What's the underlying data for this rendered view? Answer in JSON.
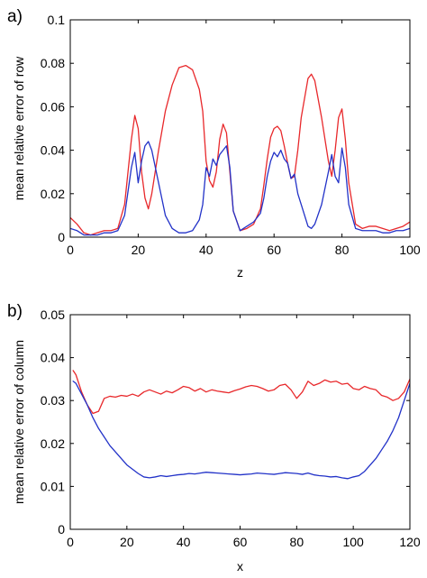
{
  "chart_data": [
    {
      "panel_label": "a)",
      "type": "line",
      "title": "",
      "xlabel": "z",
      "ylabel": "mean relative error of row",
      "xlim": [
        0,
        100
      ],
      "ylim": [
        0,
        0.1
      ],
      "xticks": [
        0,
        20,
        40,
        60,
        80,
        100
      ],
      "yticks": [
        0,
        0.02,
        0.04,
        0.06,
        0.08,
        0.1
      ],
      "xtick_labels": [
        "0",
        "20",
        "40",
        "60",
        "80",
        "100"
      ],
      "ytick_labels": [
        "0",
        "0.02",
        "0.04",
        "0.06",
        "0.08",
        "0.1"
      ],
      "grid": false,
      "series": [
        {
          "color": "#e8282b",
          "x": [
            0,
            2,
            4,
            6,
            8,
            10,
            12,
            14,
            16,
            18,
            19,
            20,
            21,
            22,
            23,
            24,
            26,
            28,
            30,
            32,
            34,
            36,
            38,
            39,
            40,
            41,
            42,
            43,
            44,
            45,
            46,
            47,
            48,
            50,
            52,
            54,
            56,
            57,
            58,
            59,
            60,
            61,
            62,
            63,
            64,
            65,
            66,
            67,
            68,
            70,
            71,
            72,
            74,
            76,
            77,
            78,
            79,
            80,
            81,
            82,
            84,
            86,
            88,
            90,
            92,
            94,
            96,
            98,
            100
          ],
          "y": [
            0.009,
            0.006,
            0.002,
            0.001,
            0.002,
            0.003,
            0.003,
            0.004,
            0.015,
            0.045,
            0.056,
            0.05,
            0.03,
            0.018,
            0.013,
            0.02,
            0.04,
            0.058,
            0.07,
            0.078,
            0.079,
            0.077,
            0.068,
            0.058,
            0.035,
            0.026,
            0.023,
            0.03,
            0.045,
            0.052,
            0.048,
            0.03,
            0.012,
            0.003,
            0.004,
            0.006,
            0.013,
            0.024,
            0.036,
            0.046,
            0.05,
            0.051,
            0.049,
            0.042,
            0.034,
            0.027,
            0.028,
            0.04,
            0.055,
            0.073,
            0.075,
            0.072,
            0.055,
            0.035,
            0.028,
            0.04,
            0.055,
            0.059,
            0.045,
            0.025,
            0.006,
            0.004,
            0.005,
            0.005,
            0.004,
            0.003,
            0.004,
            0.005,
            0.007
          ]
        },
        {
          "color": "#2232c8",
          "x": [
            0,
            2,
            4,
            6,
            8,
            10,
            12,
            14,
            16,
            18,
            19,
            20,
            21,
            22,
            23,
            24,
            26,
            28,
            30,
            32,
            34,
            36,
            38,
            39,
            40,
            41,
            42,
            43,
            44,
            45,
            46,
            47,
            48,
            50,
            52,
            54,
            56,
            57,
            58,
            59,
            60,
            61,
            62,
            63,
            64,
            65,
            66,
            67,
            68,
            70,
            71,
            72,
            74,
            76,
            77,
            78,
            79,
            80,
            81,
            82,
            84,
            86,
            88,
            90,
            92,
            94,
            96,
            98,
            100
          ],
          "y": [
            0.004,
            0.003,
            0.001,
            0.001,
            0.001,
            0.002,
            0.002,
            0.003,
            0.01,
            0.032,
            0.039,
            0.025,
            0.035,
            0.042,
            0.044,
            0.04,
            0.025,
            0.01,
            0.004,
            0.002,
            0.002,
            0.003,
            0.008,
            0.015,
            0.032,
            0.028,
            0.036,
            0.033,
            0.038,
            0.04,
            0.042,
            0.032,
            0.012,
            0.003,
            0.005,
            0.007,
            0.011,
            0.018,
            0.028,
            0.035,
            0.039,
            0.037,
            0.04,
            0.036,
            0.034,
            0.027,
            0.029,
            0.02,
            0.015,
            0.005,
            0.004,
            0.006,
            0.015,
            0.03,
            0.038,
            0.028,
            0.025,
            0.041,
            0.032,
            0.015,
            0.004,
            0.003,
            0.003,
            0.003,
            0.002,
            0.002,
            0.003,
            0.003,
            0.004
          ]
        }
      ]
    },
    {
      "panel_label": "b)",
      "type": "line",
      "title": "",
      "xlabel": "x",
      "ylabel": "mean relative error of column",
      "xlim": [
        0,
        120
      ],
      "ylim": [
        0,
        0.05
      ],
      "xticks": [
        0,
        20,
        40,
        60,
        80,
        100,
        120
      ],
      "yticks": [
        0,
        0.01,
        0.02,
        0.03,
        0.04,
        0.05
      ],
      "xtick_labels": [
        "0",
        "20",
        "40",
        "60",
        "80",
        "100",
        "120"
      ],
      "ytick_labels": [
        "0",
        "0.01",
        "0.02",
        "0.03",
        "0.04",
        "0.05"
      ],
      "grid": false,
      "series": [
        {
          "color": "#e8282b",
          "x": [
            1,
            2,
            4,
            6,
            8,
            10,
            12,
            14,
            16,
            18,
            20,
            22,
            24,
            26,
            28,
            30,
            32,
            34,
            36,
            38,
            40,
            42,
            44,
            46,
            48,
            50,
            52,
            54,
            56,
            58,
            60,
            62,
            64,
            66,
            68,
            70,
            72,
            74,
            76,
            78,
            80,
            82,
            84,
            86,
            88,
            90,
            92,
            94,
            96,
            98,
            100,
            102,
            104,
            106,
            108,
            110,
            112,
            114,
            116,
            118,
            120
          ],
          "y": [
            0.037,
            0.036,
            0.032,
            0.029,
            0.027,
            0.0275,
            0.0305,
            0.031,
            0.0308,
            0.0312,
            0.031,
            0.0315,
            0.031,
            0.032,
            0.0325,
            0.032,
            0.0315,
            0.0322,
            0.0318,
            0.0325,
            0.0333,
            0.033,
            0.0322,
            0.0328,
            0.032,
            0.0325,
            0.0322,
            0.032,
            0.0318,
            0.0323,
            0.0327,
            0.0332,
            0.0335,
            0.0333,
            0.0328,
            0.0322,
            0.0325,
            0.0335,
            0.0338,
            0.0325,
            0.0305,
            0.032,
            0.0345,
            0.0335,
            0.034,
            0.0348,
            0.0343,
            0.0345,
            0.0338,
            0.034,
            0.0328,
            0.0325,
            0.0333,
            0.0328,
            0.0325,
            0.0312,
            0.0308,
            0.03,
            0.0305,
            0.032,
            0.035
          ]
        },
        {
          "color": "#2232c8",
          "x": [
            1,
            2,
            4,
            6,
            8,
            10,
            12,
            14,
            16,
            18,
            20,
            22,
            24,
            26,
            28,
            30,
            32,
            34,
            36,
            38,
            40,
            42,
            44,
            46,
            48,
            50,
            52,
            54,
            56,
            58,
            60,
            62,
            64,
            66,
            68,
            70,
            72,
            74,
            76,
            78,
            80,
            82,
            84,
            86,
            88,
            90,
            92,
            94,
            96,
            98,
            100,
            102,
            104,
            106,
            108,
            110,
            112,
            114,
            116,
            118,
            120
          ],
          "y": [
            0.0345,
            0.034,
            0.0315,
            0.029,
            0.026,
            0.0235,
            0.0215,
            0.0195,
            0.018,
            0.0165,
            0.015,
            0.014,
            0.013,
            0.0122,
            0.012,
            0.0122,
            0.0125,
            0.0123,
            0.0125,
            0.0127,
            0.0128,
            0.013,
            0.0129,
            0.0131,
            0.0133,
            0.0132,
            0.0131,
            0.013,
            0.0129,
            0.0128,
            0.0127,
            0.0128,
            0.0129,
            0.0131,
            0.013,
            0.0129,
            0.0128,
            0.013,
            0.0132,
            0.0131,
            0.013,
            0.0128,
            0.0131,
            0.0127,
            0.0125,
            0.0124,
            0.0122,
            0.0123,
            0.012,
            0.0118,
            0.0122,
            0.0125,
            0.0135,
            0.015,
            0.0165,
            0.0185,
            0.0205,
            0.023,
            0.026,
            0.03,
            0.034
          ]
        }
      ]
    }
  ]
}
